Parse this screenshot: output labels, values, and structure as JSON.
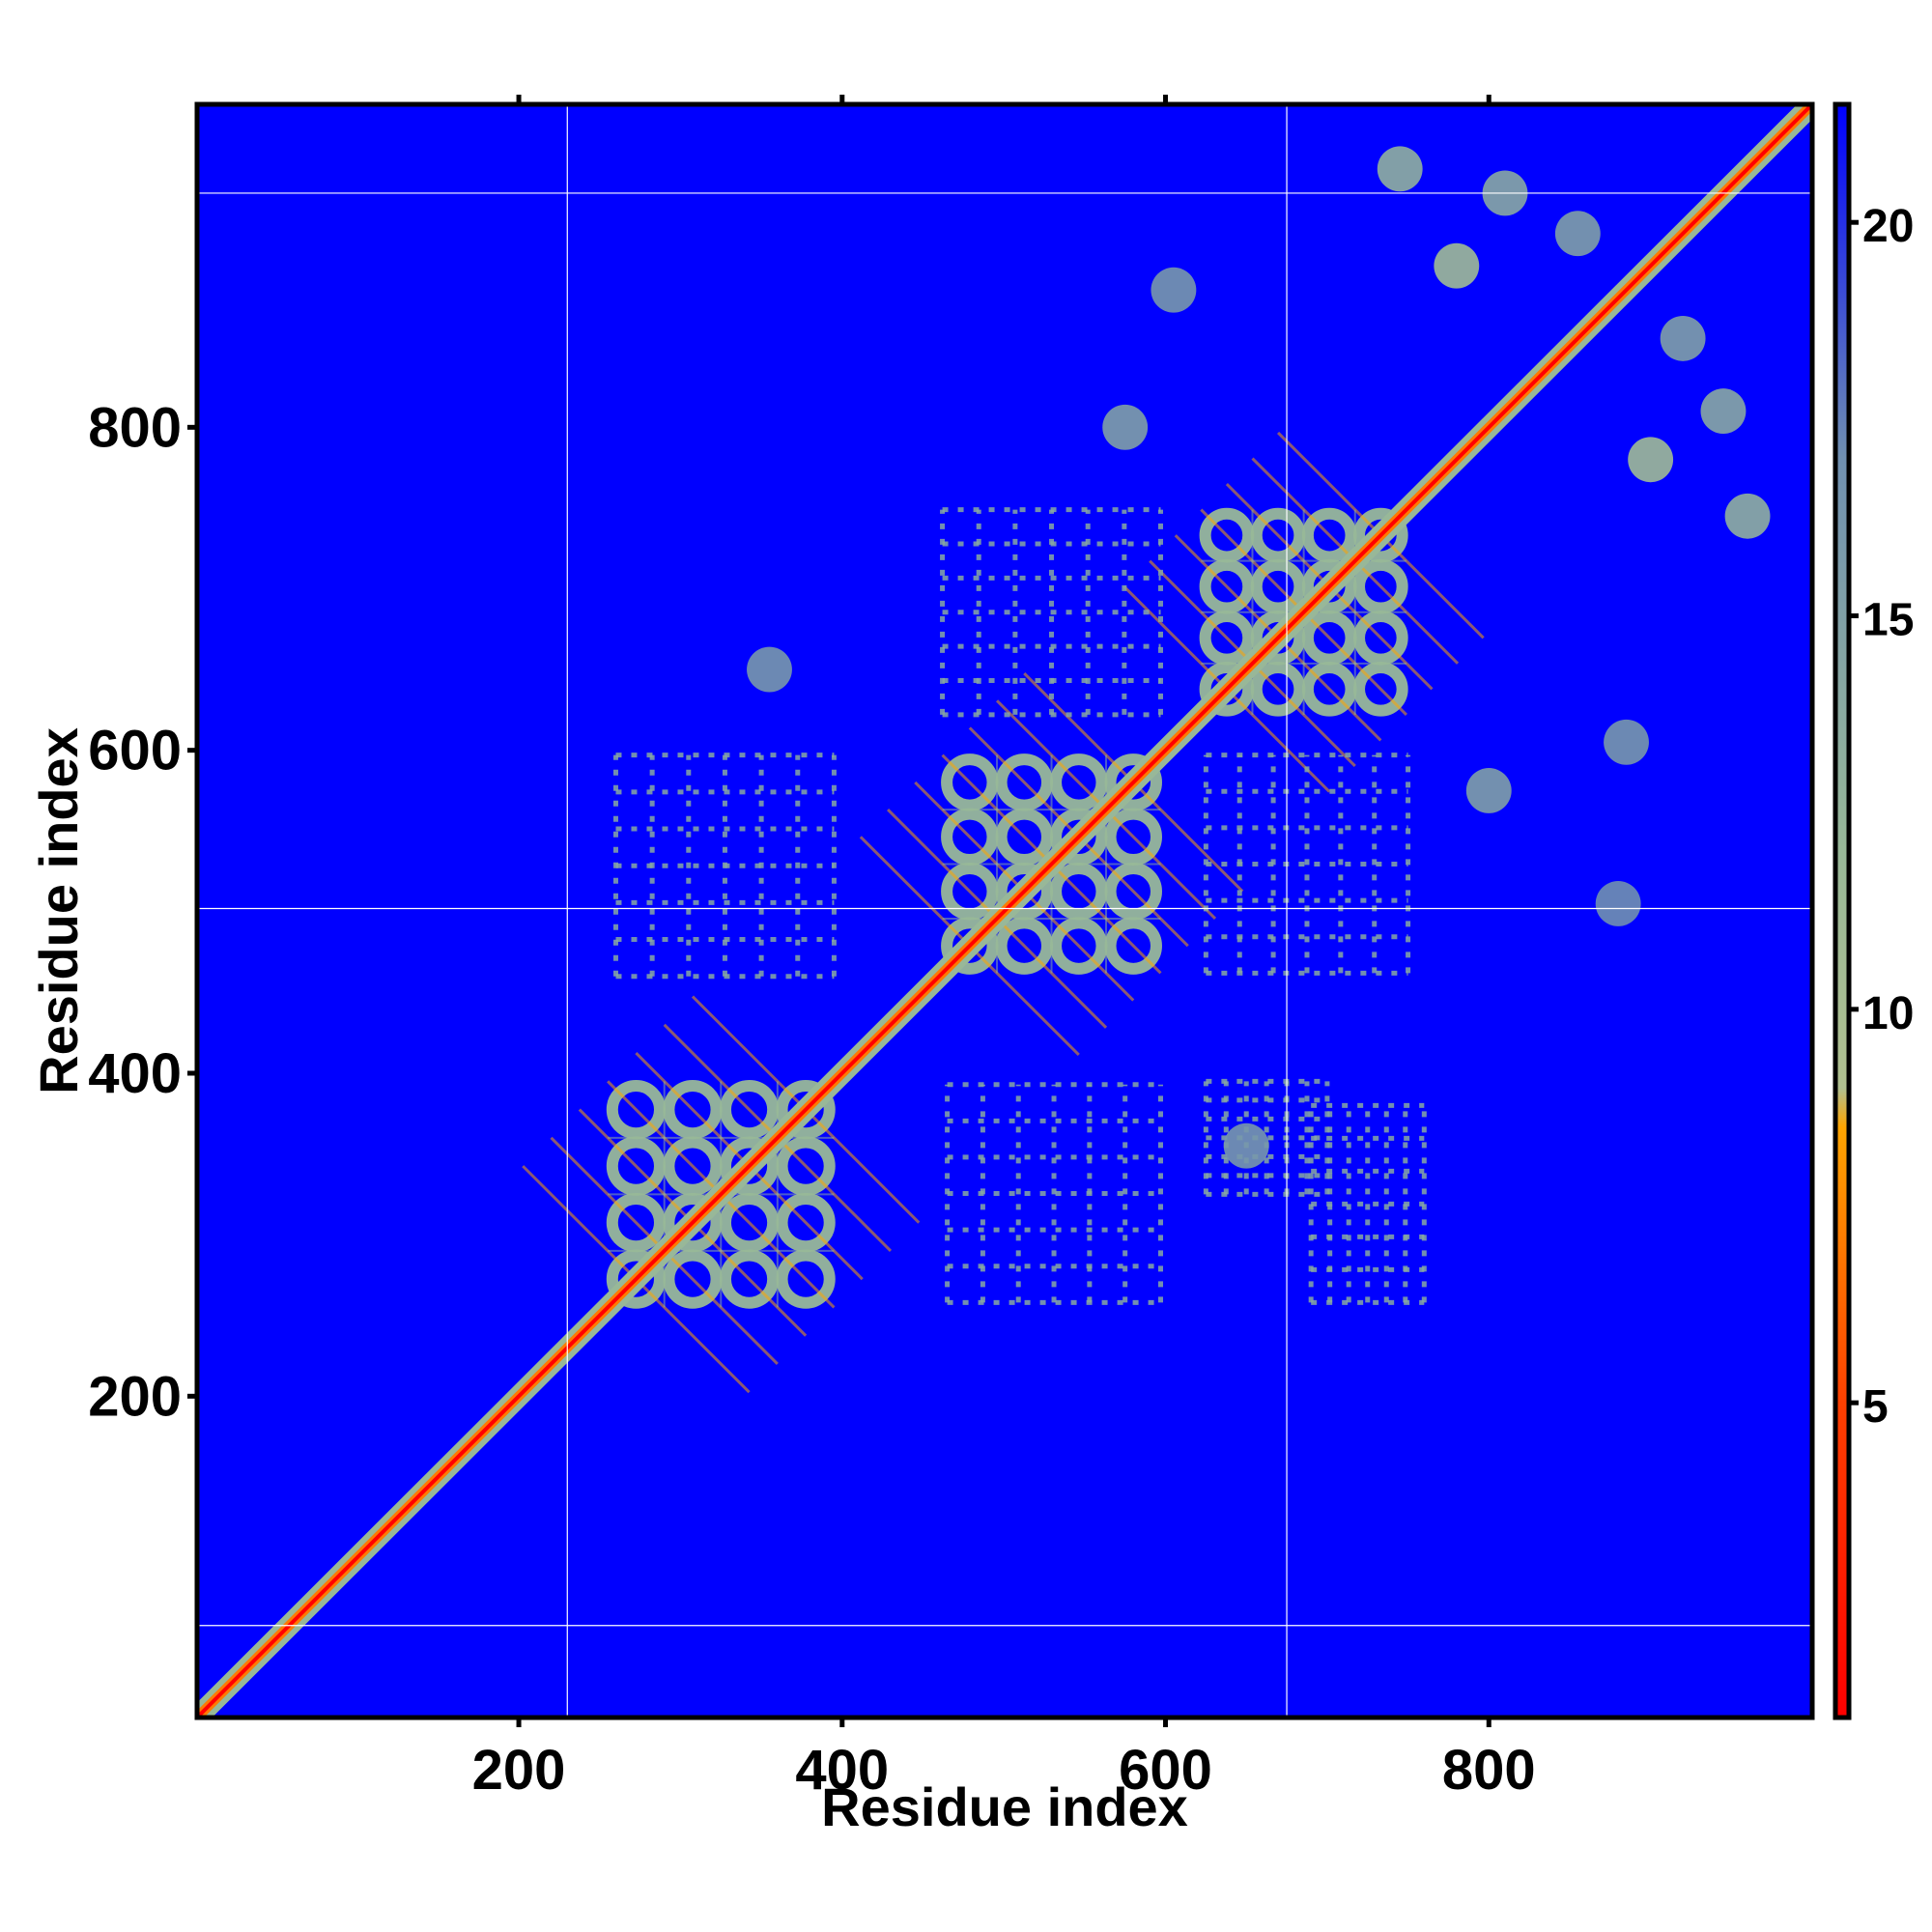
{
  "chart_data": {
    "type": "heatmap",
    "title": "",
    "xlabel": "Residue index",
    "ylabel": "Residue index",
    "xlim": [
      1,
      1000
    ],
    "ylim": [
      1,
      1000
    ],
    "x_ticks": [
      200,
      400,
      600,
      800
    ],
    "y_ticks": [
      200,
      400,
      600,
      800
    ],
    "grid_lines": {
      "x": [
        230,
        675
      ],
      "y": [
        58,
        502,
        945
      ]
    },
    "colorbar": {
      "ticks": [
        5,
        10,
        15,
        20
      ],
      "range": [
        1,
        21.5
      ],
      "stops": [
        {
          "value": 1,
          "color": "#ff0000"
        },
        {
          "value": 5,
          "color": "#ff4000"
        },
        {
          "value": 8.5,
          "color": "#ffa500"
        },
        {
          "value": 9,
          "color": "#b0c090"
        },
        {
          "value": 12,
          "color": "#98b898"
        },
        {
          "value": 17,
          "color": "#7090b0"
        },
        {
          "value": 21.5,
          "color": "#0000ff"
        }
      ]
    },
    "background_color": "#0000ff",
    "diagonal": {
      "from": 1,
      "to": 1000
    },
    "domains": [
      {
        "start": 255,
        "end": 395
      },
      {
        "start": 462,
        "end": 597
      },
      {
        "start": 622,
        "end": 749
      }
    ],
    "contact_blocks": [
      {
        "x": [
          260,
          395
        ],
        "y": [
          460,
          597
        ]
      },
      {
        "x": [
          465,
          597
        ],
        "y": [
          258,
          393
        ]
      },
      {
        "x": [
          462,
          597
        ],
        "y": [
          622,
          749
        ]
      },
      {
        "x": [
          625,
          750
        ],
        "y": [
          462,
          597
        ]
      },
      {
        "x": [
          625,
          700
        ],
        "y": [
          325,
          395
        ]
      },
      {
        "x": [
          690,
          760
        ],
        "y": [
          258,
          380
        ]
      }
    ],
    "off_diagonal_blobs": [
      {
        "x": 780,
        "y": 900,
        "value": 11
      },
      {
        "x": 900,
        "y": 780,
        "value": 11
      },
      {
        "x": 745,
        "y": 960,
        "value": 13
      },
      {
        "x": 810,
        "y": 945,
        "value": 14
      },
      {
        "x": 960,
        "y": 745,
        "value": 13
      },
      {
        "x": 945,
        "y": 810,
        "value": 14
      },
      {
        "x": 920,
        "y": 855,
        "value": 15
      },
      {
        "x": 855,
        "y": 920,
        "value": 15
      },
      {
        "x": 605,
        "y": 885,
        "value": 16
      },
      {
        "x": 885,
        "y": 605,
        "value": 16
      },
      {
        "x": 575,
        "y": 800,
        "value": 15
      },
      {
        "x": 800,
        "y": 575,
        "value": 15
      },
      {
        "x": 880,
        "y": 505,
        "value": 17
      },
      {
        "x": 355,
        "y": 650,
        "value": 16
      },
      {
        "x": 650,
        "y": 355,
        "value": 16
      }
    ]
  }
}
